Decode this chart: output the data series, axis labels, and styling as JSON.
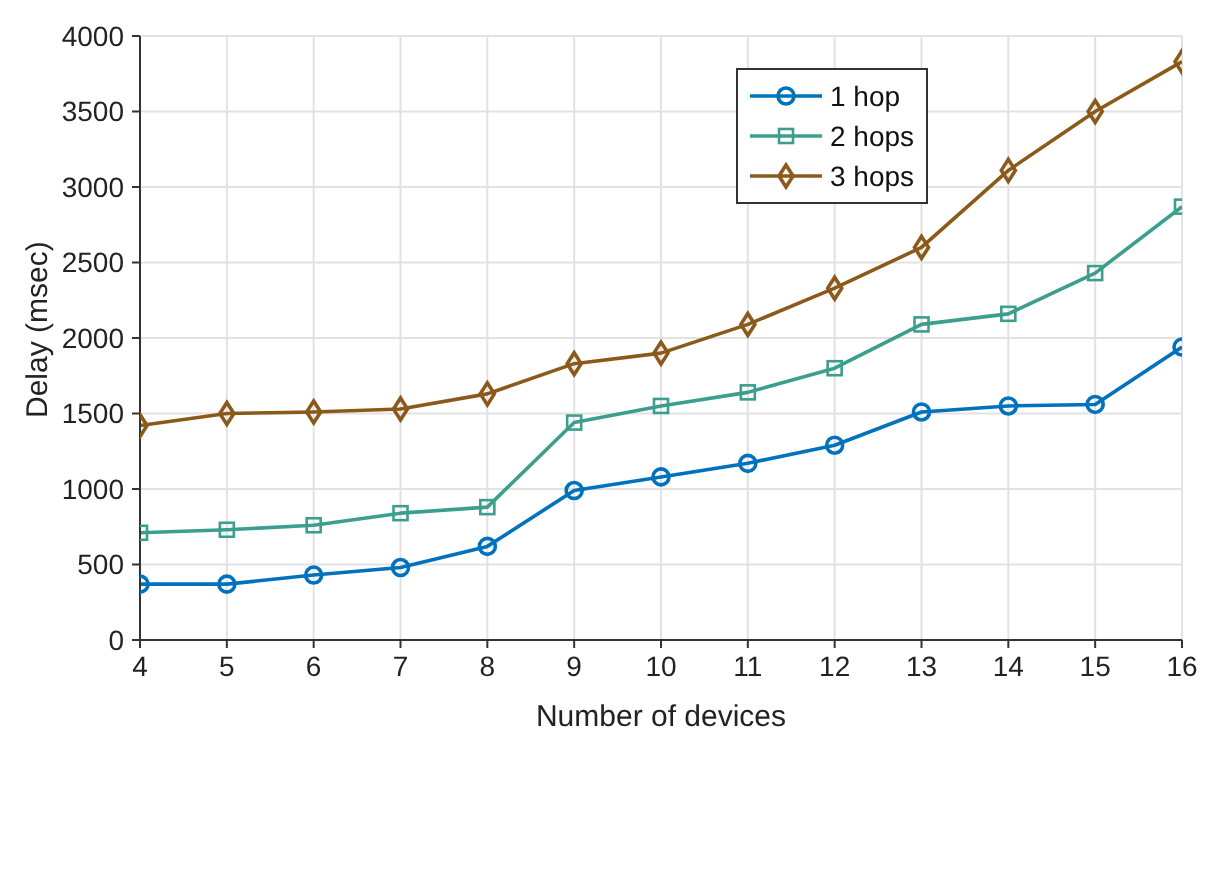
{
  "chart_data": {
    "type": "line",
    "xlabel": "Number of devices",
    "ylabel": "Delay (msec)",
    "x": [
      4,
      5,
      6,
      7,
      8,
      9,
      10,
      11,
      12,
      13,
      14,
      15,
      16
    ],
    "series": [
      {
        "name": "1 hop",
        "color": "#0072bd",
        "marker": "circle",
        "values": [
          370,
          370,
          430,
          480,
          620,
          990,
          1080,
          1170,
          1290,
          1510,
          1550,
          1560,
          1940
        ]
      },
      {
        "name": "2 hops",
        "color": "#3c9e8e",
        "marker": "square",
        "values": [
          710,
          730,
          760,
          840,
          880,
          1440,
          1550,
          1640,
          1800,
          2090,
          2160,
          2430,
          2870
        ]
      },
      {
        "name": "3 hops",
        "color": "#8b5a1b",
        "marker": "diamond",
        "values": [
          1420,
          1500,
          1510,
          1530,
          1630,
          1830,
          1900,
          2090,
          2330,
          2600,
          3110,
          3500,
          3830
        ]
      }
    ],
    "xlim": [
      4,
      16
    ],
    "xticks": [
      4,
      5,
      6,
      7,
      8,
      9,
      10,
      11,
      12,
      13,
      14,
      15,
      16
    ],
    "ylim": [
      0,
      4000
    ],
    "yticks": [
      0,
      500,
      1000,
      1500,
      2000,
      2500,
      3000,
      3500,
      4000
    ],
    "grid": true,
    "legend": "top right",
    "line_style": "solid"
  }
}
